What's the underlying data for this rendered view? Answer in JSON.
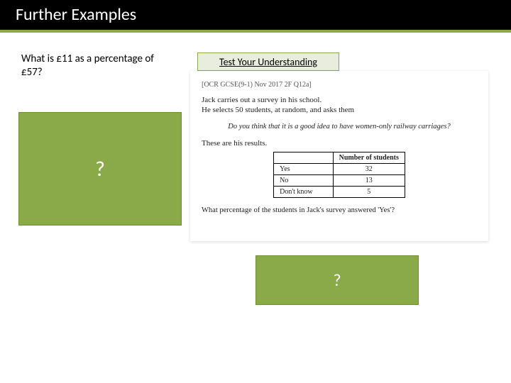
{
  "title": "Further Examples",
  "left_question": "What is £11 as a percentage of £57?",
  "tyu_label": "Test Your Understanding",
  "source_ref": "[OCR GCSE(9-1) Nov 2017 2F Q12a]",
  "survey_line1": "Jack carries out a survey in his school.",
  "survey_line2": "He selects 50 students, at random, and asks them",
  "italic_question": "Do you think that it is a good idea to have women-only railway carriages?",
  "results_intro": "These are his results.",
  "table": {
    "header_col2": "Number of students",
    "rows": [
      {
        "label": "Yes",
        "value": "32"
      },
      {
        "label": "No",
        "value": "13"
      },
      {
        "label": "Don't know",
        "value": "5"
      }
    ]
  },
  "final_question": "What percentage of the students in Jack's survey answered 'Yes'?",
  "placeholder_mark": "?",
  "colors": {
    "accent_green": "#8aaa4a",
    "accent_green_border": "#6f8e35",
    "tyu_bg": "#e9edde",
    "black": "#000000",
    "white": "#ffffff"
  }
}
